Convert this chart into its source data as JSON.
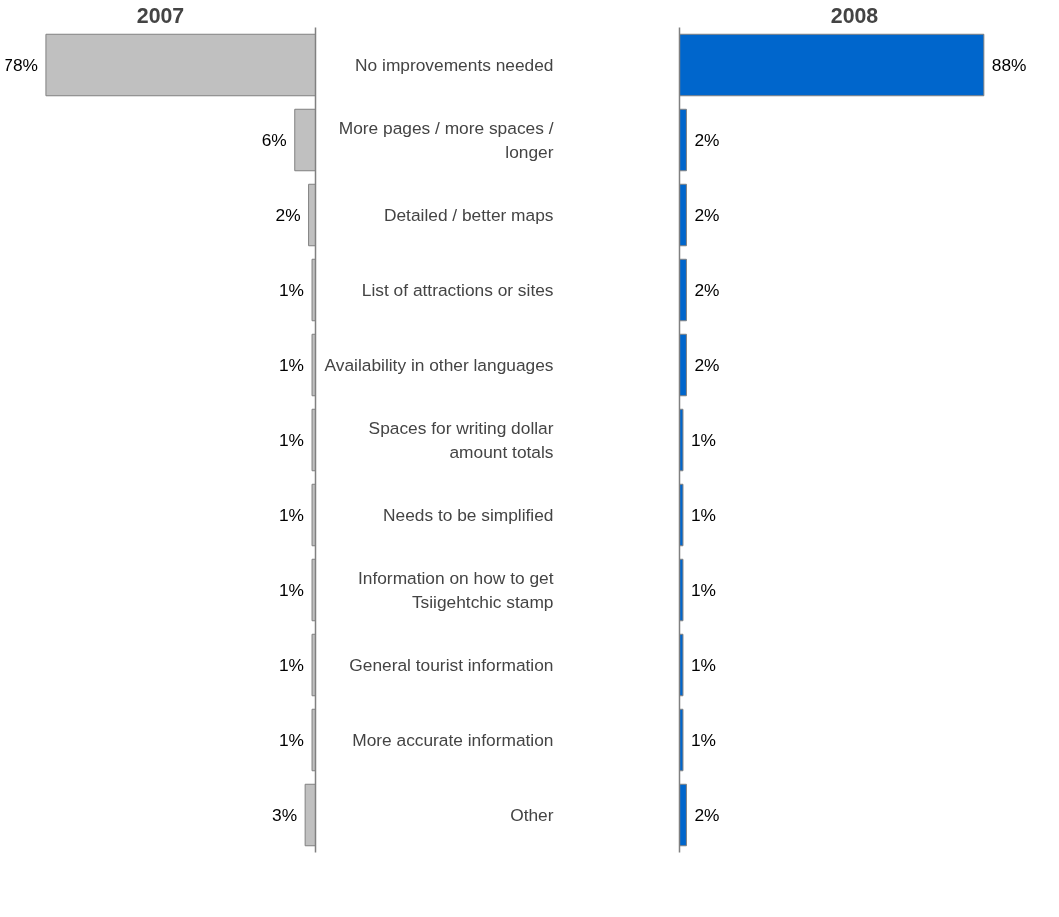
{
  "chart_data": [
    {
      "type": "bar",
      "orientation": "horizontal",
      "title": "2007",
      "categories": [
        "No improvements needed",
        "More pages / more spaces / longer",
        "Detailed / better maps",
        "List of attractions or sites",
        "Availability in other languages",
        "Spaces for writing dollar amount totals",
        "Needs to be simplified",
        "Information on how to get Tsiigehtchic stamp",
        "General tourist information",
        "More accurate information",
        "Other"
      ],
      "values": [
        78,
        6,
        2,
        1,
        1,
        1,
        1,
        1,
        1,
        1,
        3
      ],
      "value_labels": [
        "78%",
        "6%",
        "2%",
        "1%",
        "1%",
        "1%",
        "1%",
        "1%",
        "1%",
        "1%",
        "3%"
      ],
      "color": "#c0c0c0",
      "tick_labels": false
    },
    {
      "type": "bar",
      "orientation": "horizontal",
      "title": "2008",
      "categories": [
        "No improvements needed",
        "More pages / more spaces / longer",
        "Detailed / better maps",
        "List of attractions or sites",
        "Availability in other languages",
        "Spaces for writing dollar amount totals",
        "Needs to be simplified",
        "Information on how to get Tsiigehtchic stamp",
        "General tourist information",
        "More accurate information",
        "Other"
      ],
      "values": [
        88,
        2,
        2,
        2,
        2,
        1,
        1,
        1,
        1,
        1,
        2
      ],
      "value_labels": [
        "88%",
        "2%",
        "2%",
        "2%",
        "2%",
        "1%",
        "1%",
        "1%",
        "1%",
        "1%",
        "2%"
      ],
      "color": "#0066cc",
      "tick_labels": "y"
    }
  ]
}
